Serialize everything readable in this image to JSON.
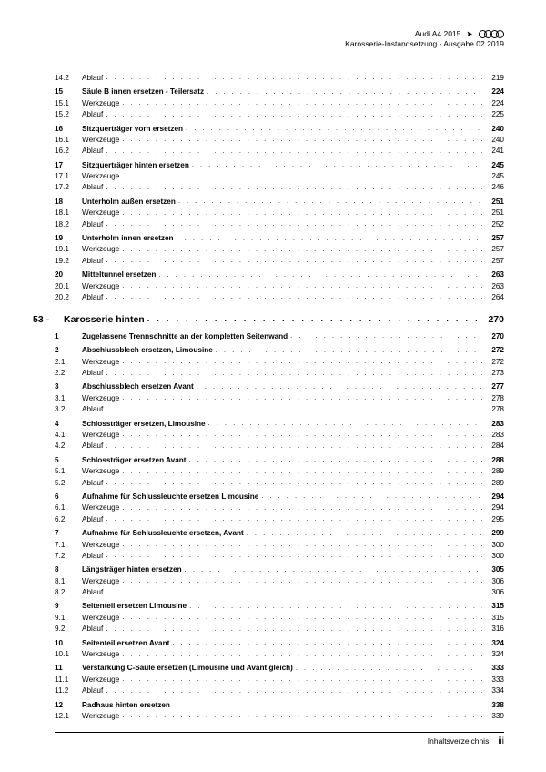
{
  "header": {
    "line1_model": "Audi A4 2015",
    "line1_arrow": "➤",
    "line2": "Karosserie-Instandsetzung - Ausgabe 02.2019"
  },
  "sectionA": [
    {
      "n": "14.2",
      "t": "Ablauf",
      "p": "219",
      "b": false,
      "top": false
    },
    {
      "n": "15",
      "t": "Säule B innen ersetzen - Teilersatz",
      "p": "224",
      "b": true,
      "top": true
    },
    {
      "n": "15.1",
      "t": "Werkzeuge",
      "p": "224",
      "b": false,
      "top": false
    },
    {
      "n": "15.2",
      "t": "Ablauf",
      "p": "225",
      "b": false,
      "top": false
    },
    {
      "n": "16",
      "t": "Sitzquerträger vorn ersetzen",
      "p": "240",
      "b": true,
      "top": true
    },
    {
      "n": "16.1",
      "t": "Werkzeuge",
      "p": "240",
      "b": false,
      "top": false
    },
    {
      "n": "16.2",
      "t": "Ablauf",
      "p": "241",
      "b": false,
      "top": false
    },
    {
      "n": "17",
      "t": "Sitzquerträger hinten ersetzen",
      "p": "245",
      "b": true,
      "top": true
    },
    {
      "n": "17.1",
      "t": "Werkzeuge",
      "p": "245",
      "b": false,
      "top": false
    },
    {
      "n": "17.2",
      "t": "Ablauf",
      "p": "246",
      "b": false,
      "top": false
    },
    {
      "n": "18",
      "t": "Unterholm außen ersetzen",
      "p": "251",
      "b": true,
      "top": true
    },
    {
      "n": "18.1",
      "t": "Werkzeuge",
      "p": "251",
      "b": false,
      "top": false
    },
    {
      "n": "18.2",
      "t": "Ablauf",
      "p": "252",
      "b": false,
      "top": false
    },
    {
      "n": "19",
      "t": "Unterholm innen ersetzen",
      "p": "257",
      "b": true,
      "top": true
    },
    {
      "n": "19.1",
      "t": "Werkzeuge",
      "p": "257",
      "b": false,
      "top": false
    },
    {
      "n": "19.2",
      "t": "Ablauf",
      "p": "257",
      "b": false,
      "top": false
    },
    {
      "n": "20",
      "t": "Mitteltunnel ersetzen",
      "p": "263",
      "b": true,
      "top": true
    },
    {
      "n": "20.1",
      "t": "Werkzeuge",
      "p": "263",
      "b": false,
      "top": false
    },
    {
      "n": "20.2",
      "t": "Ablauf",
      "p": "264",
      "b": false,
      "top": false
    }
  ],
  "sectionHeader": {
    "n": "53 -",
    "t": "Karosserie hinten",
    "p": "270"
  },
  "sectionB": [
    {
      "n": "1",
      "t": "Zugelassene Trennschnitte an der kompletten Seitenwand",
      "p": "270",
      "b": true,
      "top": false
    },
    {
      "n": "2",
      "t": "Abschlussblech ersetzen, Limousine",
      "p": "272",
      "b": true,
      "top": true
    },
    {
      "n": "2.1",
      "t": "Werkzeuge",
      "p": "272",
      "b": false,
      "top": false
    },
    {
      "n": "2.2",
      "t": "Ablauf",
      "p": "273",
      "b": false,
      "top": false
    },
    {
      "n": "3",
      "t": "Abschlussblech ersetzen Avant",
      "p": "277",
      "b": true,
      "top": true
    },
    {
      "n": "3.1",
      "t": "Werkzeuge",
      "p": "278",
      "b": false,
      "top": false
    },
    {
      "n": "3.2",
      "t": "Ablauf",
      "p": "278",
      "b": false,
      "top": false
    },
    {
      "n": "4",
      "t": "Schlossträger ersetzen, Limousine",
      "p": "283",
      "b": true,
      "top": true
    },
    {
      "n": "4.1",
      "t": "Werkzeuge",
      "p": "283",
      "b": false,
      "top": false
    },
    {
      "n": "4.2",
      "t": "Ablauf",
      "p": "284",
      "b": false,
      "top": false
    },
    {
      "n": "5",
      "t": "Schlossträger ersetzen Avant",
      "p": "288",
      "b": true,
      "top": true
    },
    {
      "n": "5.1",
      "t": "Werkzeuge",
      "p": "289",
      "b": false,
      "top": false
    },
    {
      "n": "5.2",
      "t": "Ablauf",
      "p": "289",
      "b": false,
      "top": false
    },
    {
      "n": "6",
      "t": "Aufnahme für Schlussleuchte ersetzen Limousine",
      "p": "294",
      "b": true,
      "top": true
    },
    {
      "n": "6.1",
      "t": "Werkzeuge",
      "p": "294",
      "b": false,
      "top": false
    },
    {
      "n": "6.2",
      "t": "Ablauf",
      "p": "295",
      "b": false,
      "top": false
    },
    {
      "n": "7",
      "t": "Aufnahme für Schlussleuchte ersetzen, Avant",
      "p": "299",
      "b": true,
      "top": true
    },
    {
      "n": "7.1",
      "t": "Werkzeuge",
      "p": "300",
      "b": false,
      "top": false
    },
    {
      "n": "7.2",
      "t": "Ablauf",
      "p": "300",
      "b": false,
      "top": false
    },
    {
      "n": "8",
      "t": "Längsträger hinten ersetzen",
      "p": "305",
      "b": true,
      "top": true
    },
    {
      "n": "8.1",
      "t": "Werkzeuge",
      "p": "306",
      "b": false,
      "top": false
    },
    {
      "n": "8.2",
      "t": "Ablauf",
      "p": "306",
      "b": false,
      "top": false
    },
    {
      "n": "9",
      "t": "Seitenteil ersetzen Limousine",
      "p": "315",
      "b": true,
      "top": true
    },
    {
      "n": "9.1",
      "t": "Werkzeuge",
      "p": "315",
      "b": false,
      "top": false
    },
    {
      "n": "9.2",
      "t": "Ablauf",
      "p": "316",
      "b": false,
      "top": false
    },
    {
      "n": "10",
      "t": "Seitenteil ersetzen Avant",
      "p": "324",
      "b": true,
      "top": true
    },
    {
      "n": "10.1",
      "t": "Werkzeuge",
      "p": "324",
      "b": false,
      "top": false
    },
    {
      "n": "11",
      "t": "Verstärkung C-Säule ersetzen (Limousine und Avant gleich)",
      "p": "333",
      "b": true,
      "top": true
    },
    {
      "n": "11.1",
      "t": "Werkzeuge",
      "p": "333",
      "b": false,
      "top": false
    },
    {
      "n": "11.2",
      "t": "Ablauf",
      "p": "334",
      "b": false,
      "top": false
    },
    {
      "n": "12",
      "t": "Radhaus hinten ersetzen",
      "p": "338",
      "b": true,
      "top": true
    },
    {
      "n": "12.1",
      "t": "Werkzeuge",
      "p": "339",
      "b": false,
      "top": false
    }
  ],
  "footer": {
    "label": "Inhaltsverzeichnis",
    "page": "iii"
  },
  "leader": ". . . . . . . . . . . . . . . . . . . . . . . . . . . . . . . . . . . . . . . . . . . . . . . . . . . . . . . . . . . . . . . . . . . . . . . . . . . . . . . . . . . . . . . . . . . . . . ."
}
